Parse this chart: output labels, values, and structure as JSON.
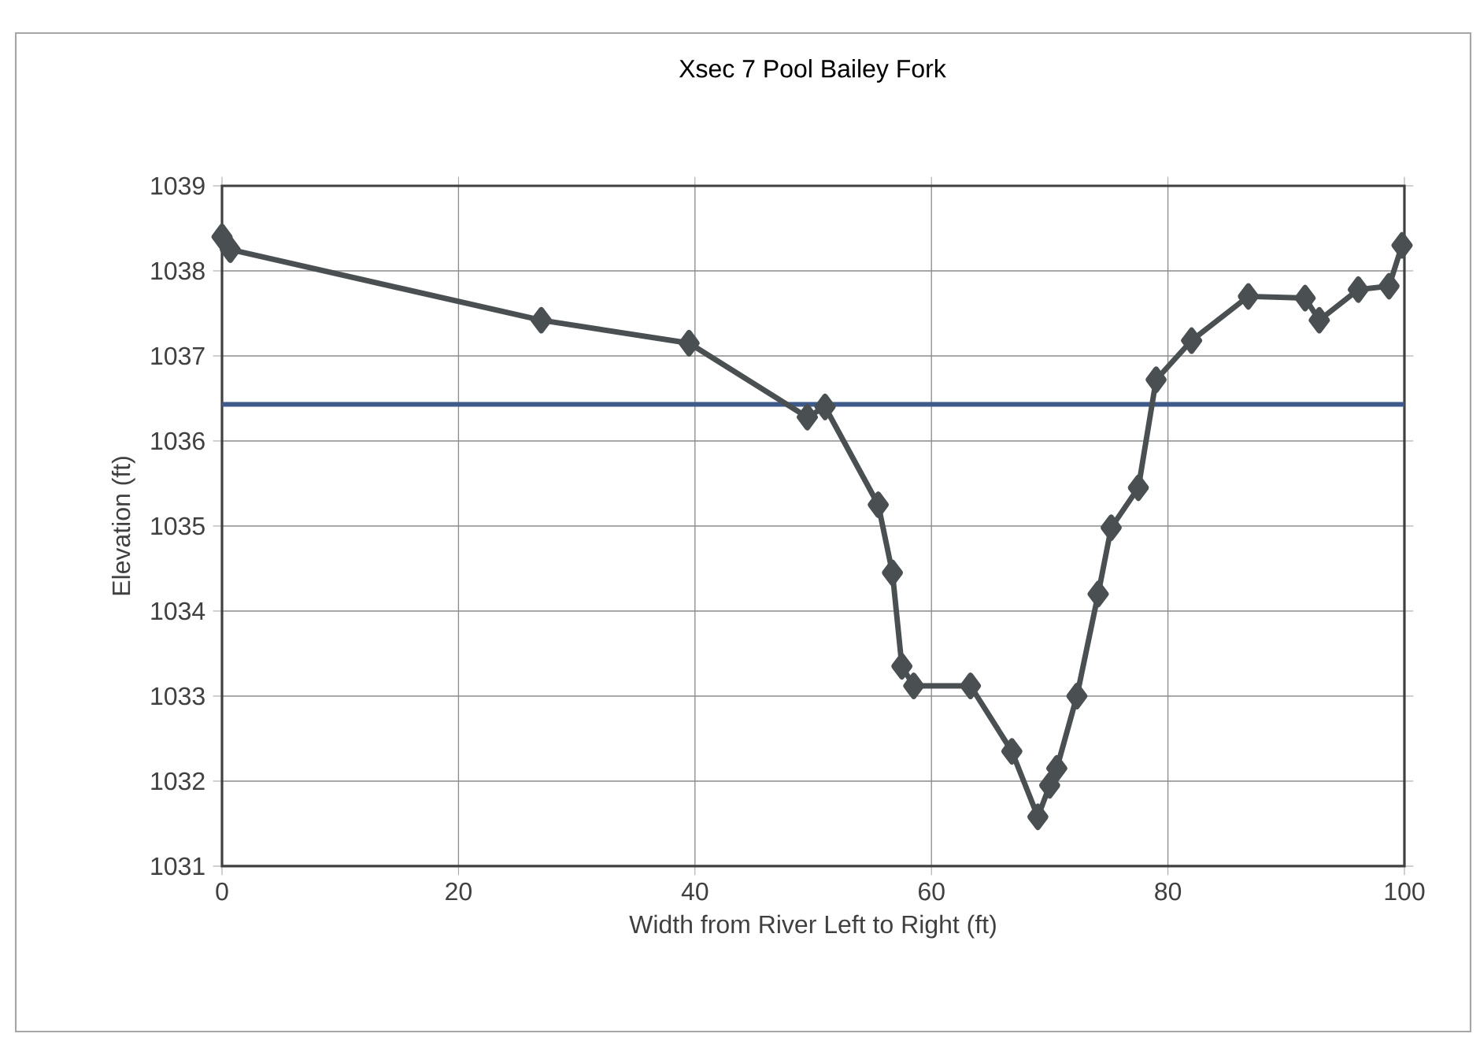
{
  "chart_data": {
    "type": "line",
    "title": "Xsec 7 Pool Bailey Fork",
    "xlabel": "Width from River Left to Right (ft)",
    "ylabel": "Elevation (ft)",
    "x": [
      0,
      0.7,
      27,
      39.5,
      49.5,
      51,
      55.5,
      56.7,
      57.5,
      58.5,
      63.3,
      66.8,
      69,
      70,
      70.6,
      72.3,
      74.1,
      75.2,
      77.5,
      79,
      82,
      86.8,
      91.6,
      92.8,
      96.1,
      98.7,
      99.8
    ],
    "series": [
      {
        "color": "#4a4f52",
        "values": [
          1038.4,
          1038.25,
          1037.42,
          1037.15,
          1036.28,
          1036.4,
          1035.25,
          1034.45,
          1033.35,
          1033.12,
          1033.12,
          1032.35,
          1031.58,
          1031.95,
          1032.15,
          1033.0,
          1034.2,
          1034.98,
          1035.45,
          1036.72,
          1037.18,
          1037.7,
          1037.68,
          1037.42,
          1037.78,
          1037.82,
          1038.3
        ]
      }
    ],
    "xlim": [
      0,
      100
    ],
    "ylim": [
      1031,
      1039
    ],
    "xticks": [
      0,
      20,
      40,
      60,
      80,
      100
    ],
    "yticks": [
      1031,
      1032,
      1033,
      1034,
      1035,
      1036,
      1037,
      1038,
      1039
    ],
    "grid": true,
    "marker": "diamond",
    "line_style": "solid",
    "ref_lines": [
      {
        "axis": "y",
        "value": 1036.43,
        "color": "#3d5a8a"
      }
    ]
  }
}
